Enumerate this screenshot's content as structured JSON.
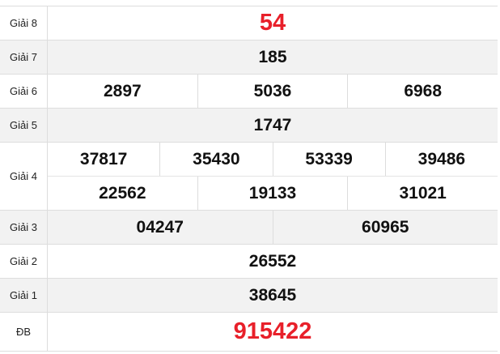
{
  "prizes": [
    {
      "label": "Giải 8",
      "lines": [
        [
          "54"
        ]
      ],
      "highlight": true
    },
    {
      "label": "Giải 7",
      "lines": [
        [
          "185"
        ]
      ]
    },
    {
      "label": "Giải 6",
      "lines": [
        [
          "2897",
          "5036",
          "6968"
        ]
      ]
    },
    {
      "label": "Giải 5",
      "lines": [
        [
          "1747"
        ]
      ]
    },
    {
      "label": "Giải 4",
      "lines": [
        [
          "37817",
          "35430",
          "53339",
          "39486"
        ],
        [
          "22562",
          "19133",
          "31021"
        ]
      ]
    },
    {
      "label": "Giải 3",
      "lines": [
        [
          "04247",
          "60965"
        ]
      ]
    },
    {
      "label": "Giải 2",
      "lines": [
        [
          "26552"
        ]
      ]
    },
    {
      "label": "Giải 1",
      "lines": [
        [
          "38645"
        ]
      ]
    },
    {
      "label": "ĐB",
      "lines": [
        [
          "915422"
        ]
      ],
      "highlight": true
    }
  ],
  "colors": {
    "highlight": "#e8202a",
    "alt_row": "#f2f2f2",
    "border": "#dddddd"
  }
}
